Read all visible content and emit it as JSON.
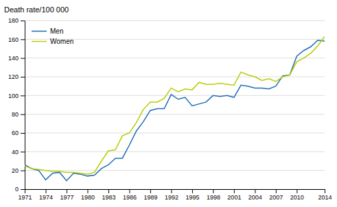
{
  "chart_data": {
    "type": "line",
    "ylabel": "Death rate/100 000",
    "x": [
      1971,
      1972,
      1973,
      1974,
      1975,
      1976,
      1977,
      1978,
      1979,
      1980,
      1981,
      1982,
      1983,
      1984,
      1985,
      1986,
      1987,
      1988,
      1989,
      1990,
      1991,
      1992,
      1993,
      1994,
      1995,
      1996,
      1997,
      1998,
      1999,
      2000,
      2001,
      2002,
      2003,
      2004,
      2005,
      2006,
      2007,
      2008,
      2009,
      2010,
      2011,
      2012,
      2013,
      2014
    ],
    "series": [
      {
        "name": "Men",
        "color": "#1f6db5",
        "values": [
          26,
          22,
          20,
          10,
          17,
          18,
          9,
          17,
          16,
          14,
          15,
          22,
          26,
          33,
          33,
          47,
          62,
          72,
          84,
          86,
          86,
          101,
          96,
          98,
          89,
          91,
          93,
          100,
          99,
          100,
          98,
          111,
          110,
          108,
          108,
          107,
          110,
          121,
          122,
          142,
          148,
          152,
          159,
          158
        ]
      },
      {
        "name": "Women",
        "color": "#b8cc00",
        "values": [
          25,
          22,
          21,
          20,
          19,
          19,
          18,
          18,
          17,
          16,
          18,
          30,
          41,
          42,
          57,
          60,
          71,
          85,
          93,
          93,
          97,
          108,
          104,
          107,
          106,
          114,
          112,
          112,
          113,
          112,
          111,
          125,
          122,
          120,
          116,
          118,
          115,
          120,
          122,
          136,
          140,
          145,
          153,
          163
        ]
      }
    ],
    "xlim": [
      1971,
      2014
    ],
    "xticks": [
      1971,
      1974,
      1977,
      1980,
      1983,
      1986,
      1989,
      1992,
      1995,
      1998,
      2001,
      2004,
      2007,
      2010,
      2014
    ],
    "ylim": [
      0,
      180
    ],
    "yticks": [
      0,
      20,
      40,
      60,
      80,
      100,
      120,
      140,
      160,
      180
    ],
    "grid": true,
    "legend": "upper left"
  }
}
